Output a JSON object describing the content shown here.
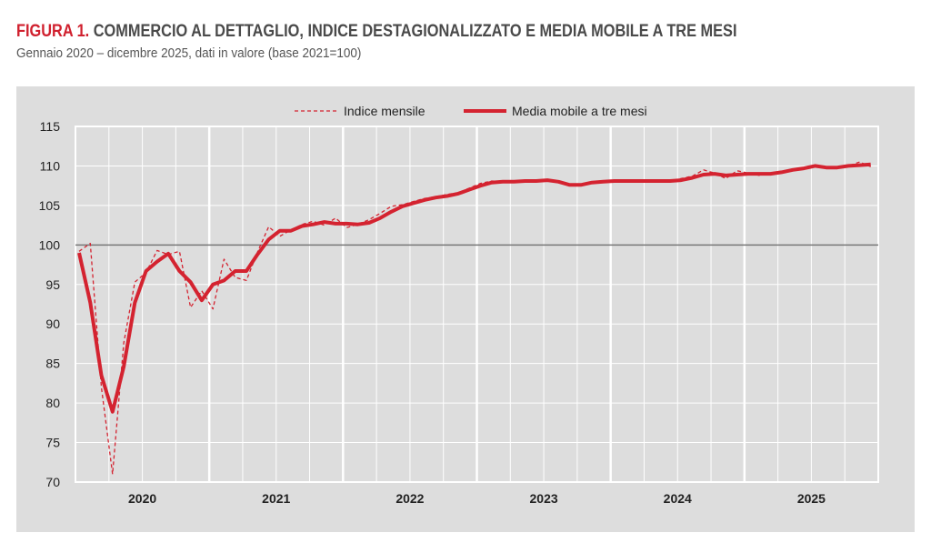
{
  "title_prefix": "FIGURA 1.",
  "title": "COMMERCIO AL DETTAGLIO, INDICE DESTAGIONALIZZATO E MEDIA MOBILE A TRE MESI",
  "subtitle": "Gennaio 2020 – dicembre 2025, dati in valore (base 2021=100)",
  "chart_data": {
    "type": "line",
    "title": "COMMERCIO AL DETTAGLIO, INDICE DESTAGIONALIZZATO E MEDIA MOBILE A TRE MESI",
    "x_range": [
      "2020-01",
      "2025-12"
    ],
    "x_tick_labels": [
      "2020",
      "2021",
      "2022",
      "2023",
      "2024",
      "2025"
    ],
    "ylim": [
      70,
      115
    ],
    "y_ticks": [
      70,
      75,
      80,
      85,
      90,
      95,
      100,
      105,
      110,
      115
    ],
    "reference_line": 100,
    "grid": true,
    "legend": "top-center",
    "colors": {
      "series": "#d42330",
      "background": "#dddddd",
      "grid": "#ffffff",
      "reference": "#777777"
    },
    "series": [
      {
        "name": "Indice mensile",
        "style": "dashed",
        "values": [
          99.2,
          100.2,
          82,
          71,
          87.6,
          95.3,
          96.5,
          99.3,
          98.8,
          99.2,
          92.1,
          94.2,
          91.9,
          98.2,
          95.9,
          95.5,
          99.1,
          102.3,
          101.1,
          101.9,
          102.6,
          103,
          102.5,
          103.4,
          102.2,
          102.6,
          103.2,
          104,
          104.9,
          105.1,
          105.5,
          105.9,
          106.1,
          106.4,
          106.6,
          107.2,
          107.8,
          108.1,
          108,
          108.1,
          108.1,
          108.2,
          108.3,
          107.9,
          107.5,
          107.6,
          108,
          108.1,
          108.1,
          108.1,
          108.1,
          108.1,
          108,
          108.1,
          108.4,
          108.7,
          109.5,
          109.1,
          108.4,
          109.4,
          109.1,
          108.8,
          109,
          109.2,
          109.6,
          109.8,
          110.1,
          109.9,
          109.8,
          110,
          110.5,
          109.9
        ]
      },
      {
        "name": "Media mobile a tre mesi",
        "style": "solid",
        "values": [
          99,
          92.7,
          83.5,
          78.9,
          84.6,
          92.7,
          96.7,
          97.9,
          98.9,
          96.7,
          95.3,
          93,
          95,
          95.5,
          96.7,
          96.7,
          98.8,
          100.7,
          101.8,
          101.8,
          102.4,
          102.6,
          102.9,
          102.7,
          102.7,
          102.6,
          102.8,
          103.4,
          104.2,
          104.9,
          105.3,
          105.7,
          106,
          106.2,
          106.5,
          107,
          107.5,
          107.9,
          108,
          108,
          108.1,
          108.1,
          108.2,
          108,
          107.6,
          107.6,
          107.9,
          108,
          108.1,
          108.1,
          108.1,
          108.1,
          108.1,
          108.1,
          108.2,
          108.5,
          108.9,
          109,
          108.8,
          108.9,
          109,
          109,
          109,
          109.2,
          109.5,
          109.7,
          110,
          109.8,
          109.8,
          110,
          110.1,
          110.2
        ]
      }
    ]
  }
}
